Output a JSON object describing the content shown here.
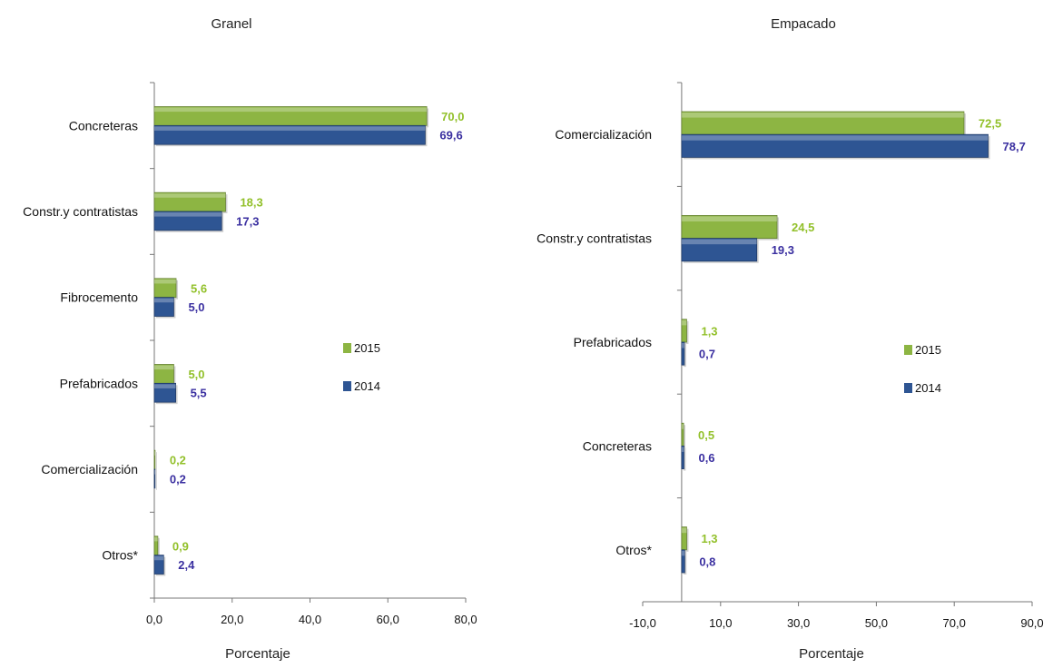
{
  "chart_data": [
    {
      "type": "bar",
      "orientation": "horizontal",
      "title": "Granel",
      "xlabel": "Porcentaje",
      "ylabel": "",
      "xlim": [
        0,
        80
      ],
      "ticks": [
        "0,0",
        "20,0",
        "40,0",
        "60,0",
        "80,0"
      ],
      "tick_values": [
        0,
        20,
        40,
        60,
        80
      ],
      "categories": [
        "Concreteras",
        "Constr.y contratistas",
        "Fibrocemento",
        "Prefabricados",
        "Comercialización",
        "Otros*"
      ],
      "series": [
        {
          "name": "2015",
          "color": "#8db543",
          "label_color": "#92c02a",
          "values": [
            70.0,
            18.3,
            5.6,
            5.0,
            0.2,
            0.9
          ],
          "labels": [
            "70,0",
            "18,3",
            "5,6",
            "5,0",
            "0,2",
            "0,9"
          ]
        },
        {
          "name": "2014",
          "color": "#2e5593",
          "label_color": "#3a2fa0",
          "values": [
            69.6,
            17.3,
            5.0,
            5.5,
            0.2,
            2.4
          ],
          "labels": [
            "69,6",
            "17,3",
            "5,0",
            "5,5",
            "0,2",
            "2,4"
          ]
        }
      ],
      "legend_position": "right"
    },
    {
      "type": "bar",
      "orientation": "horizontal",
      "title": "Empacado",
      "xlabel": "Porcentaje",
      "ylabel": "",
      "xlim": [
        -10,
        90
      ],
      "ticks": [
        "-10,0",
        "10,0",
        "30,0",
        "50,0",
        "70,0",
        "90,0"
      ],
      "tick_values": [
        -10,
        10,
        30,
        50,
        70,
        90
      ],
      "categories": [
        "Comercialización",
        "Constr.y contratistas",
        "Prefabricados",
        "Concreteras",
        "Otros*"
      ],
      "series": [
        {
          "name": "2015",
          "color": "#8db543",
          "label_color": "#92c02a",
          "values": [
            72.5,
            24.5,
            1.3,
            0.5,
            1.3
          ],
          "labels": [
            "72,5",
            "24,5",
            "1,3",
            "0,5",
            "1,3"
          ]
        },
        {
          "name": "2014",
          "color": "#2e5593",
          "label_color": "#3a2fa0",
          "values": [
            78.7,
            19.3,
            0.7,
            0.6,
            0.8
          ],
          "labels": [
            "78,7",
            "19,3",
            "0,7",
            "0,6",
            "0,8"
          ]
        }
      ],
      "legend_position": "right"
    }
  ]
}
